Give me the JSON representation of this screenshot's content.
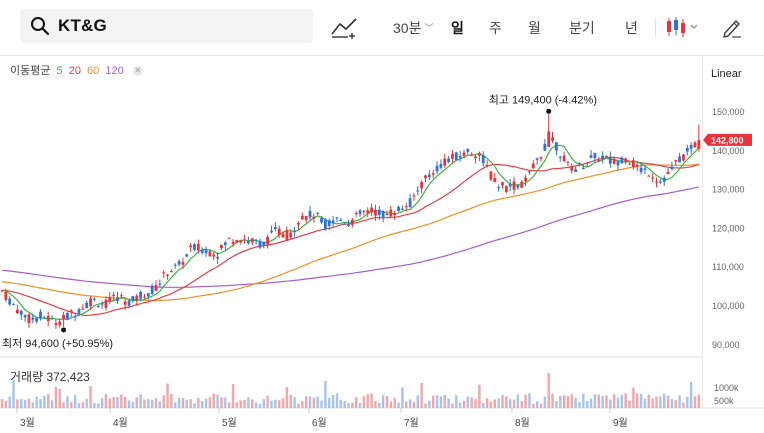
{
  "toolbar": {
    "stock_name": "KT&G",
    "periods": {
      "min30": "30분",
      "day": "일",
      "week": "주",
      "month": "월",
      "quarter": "분기",
      "year": "년"
    },
    "active_period": "일"
  },
  "legend": {
    "title": "이동평균",
    "ma5": "5",
    "ma20": "20",
    "ma60": "60",
    "ma120": "120",
    "colors": {
      "ma5": "#3fb53f",
      "ma20": "#e0424a",
      "ma60": "#f0902a",
      "ma120": "#a65ec9"
    }
  },
  "scale_mode": "Linear",
  "annotations": {
    "high": "최고 149,400 (-4.42%)",
    "low": "최저 94,600 (+50.95%)"
  },
  "volume": {
    "label": "거래량 372,423",
    "ticks": [
      "1000k",
      "500k"
    ]
  },
  "chart_data": {
    "type": "candlestick",
    "price_ticks": [
      "150,000",
      "140,000",
      "130,000",
      "120,000",
      "110,000",
      "100,000",
      "90,000"
    ],
    "current_price": "142,800",
    "x_ticks": [
      "3월",
      "4월",
      "5월",
      "6월",
      "7월",
      "8월",
      "9월"
    ],
    "high": 149400,
    "low": 94600,
    "ylim": [
      88000,
      155000
    ],
    "colors": {
      "up": "#e8333b",
      "down": "#2f73d9",
      "vol_up": "#f2a6a9",
      "vol_down": "#a5c3ee"
    }
  }
}
